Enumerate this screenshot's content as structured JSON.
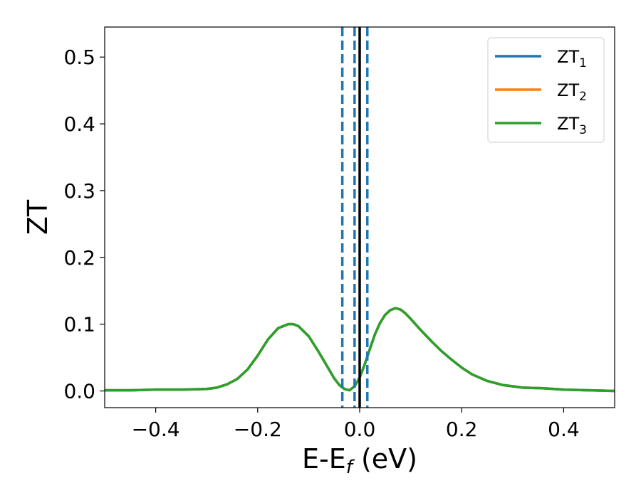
{
  "chart_data": {
    "type": "line",
    "xlabel": "E-E",
    "xlabel_sub": "f",
    "xlabel_unit": "(eV)",
    "ylabel": "ZT",
    "xlim": [
      -0.5,
      0.5
    ],
    "ylim": [
      -0.025,
      0.545
    ],
    "xticks": [
      -0.4,
      -0.2,
      0.0,
      0.2,
      0.4
    ],
    "xtick_labels": [
      "−0.4",
      "−0.2",
      "0.0",
      "0.2",
      "0.4"
    ],
    "yticks": [
      0.0,
      0.1,
      0.2,
      0.3,
      0.4,
      0.5
    ],
    "ytick_labels": [
      "0.0",
      "0.1",
      "0.2",
      "0.3",
      "0.4",
      "0.5"
    ],
    "grid": false,
    "legend_position": "top-right",
    "series": [
      {
        "name": "ZT",
        "name_sub": "1",
        "color": "#1f77b4",
        "x": [
          -0.5,
          -0.45,
          -0.4,
          -0.35,
          -0.3,
          -0.28,
          -0.26,
          -0.24,
          -0.22,
          -0.2,
          -0.18,
          -0.16,
          -0.14,
          -0.13,
          -0.12,
          -0.1,
          -0.08,
          -0.06,
          -0.05,
          -0.04,
          -0.03,
          -0.02,
          -0.01,
          0.0,
          0.01,
          0.02,
          0.03,
          0.04,
          0.05,
          0.06,
          0.07,
          0.08,
          0.09,
          0.1,
          0.12,
          0.14,
          0.16,
          0.18,
          0.2,
          0.22,
          0.25,
          0.28,
          0.32,
          0.36,
          0.4,
          0.45,
          0.5
        ],
        "y": [
          0.001,
          0.001,
          0.002,
          0.002,
          0.003,
          0.005,
          0.01,
          0.018,
          0.032,
          0.053,
          0.077,
          0.094,
          0.1,
          0.1,
          0.097,
          0.082,
          0.058,
          0.032,
          0.019,
          0.009,
          0.003,
          0.001,
          0.007,
          0.02,
          0.04,
          0.063,
          0.085,
          0.102,
          0.114,
          0.121,
          0.124,
          0.122,
          0.116,
          0.108,
          0.091,
          0.075,
          0.06,
          0.047,
          0.035,
          0.025,
          0.015,
          0.009,
          0.005,
          0.004,
          0.002,
          0.001,
          0.0
        ]
      },
      {
        "name": "ZT",
        "name_sub": "2",
        "color": "#ff7f0e",
        "x": [
          -0.5,
          -0.45,
          -0.4,
          -0.35,
          -0.3,
          -0.28,
          -0.26,
          -0.24,
          -0.22,
          -0.2,
          -0.18,
          -0.16,
          -0.14,
          -0.13,
          -0.12,
          -0.1,
          -0.08,
          -0.06,
          -0.05,
          -0.04,
          -0.03,
          -0.02,
          -0.01,
          0.0,
          0.01,
          0.02,
          0.03,
          0.04,
          0.05,
          0.06,
          0.07,
          0.08,
          0.09,
          0.1,
          0.12,
          0.14,
          0.16,
          0.18,
          0.2,
          0.22,
          0.25,
          0.28,
          0.32,
          0.36,
          0.4,
          0.45,
          0.5
        ],
        "y": [
          0.001,
          0.001,
          0.002,
          0.002,
          0.003,
          0.005,
          0.01,
          0.018,
          0.032,
          0.053,
          0.077,
          0.094,
          0.1,
          0.1,
          0.097,
          0.082,
          0.058,
          0.032,
          0.019,
          0.009,
          0.003,
          0.001,
          0.007,
          0.02,
          0.04,
          0.063,
          0.085,
          0.102,
          0.114,
          0.121,
          0.124,
          0.122,
          0.116,
          0.108,
          0.091,
          0.075,
          0.06,
          0.047,
          0.035,
          0.025,
          0.015,
          0.009,
          0.005,
          0.004,
          0.002,
          0.001,
          0.0
        ]
      },
      {
        "name": "ZT",
        "name_sub": "3",
        "color": "#2ca02c",
        "x": [
          -0.5,
          -0.45,
          -0.4,
          -0.35,
          -0.3,
          -0.28,
          -0.26,
          -0.24,
          -0.22,
          -0.2,
          -0.18,
          -0.16,
          -0.14,
          -0.13,
          -0.12,
          -0.1,
          -0.08,
          -0.06,
          -0.05,
          -0.04,
          -0.03,
          -0.02,
          -0.01,
          0.0,
          0.01,
          0.02,
          0.03,
          0.04,
          0.05,
          0.06,
          0.07,
          0.08,
          0.09,
          0.1,
          0.12,
          0.14,
          0.16,
          0.18,
          0.2,
          0.22,
          0.25,
          0.28,
          0.32,
          0.36,
          0.4,
          0.45,
          0.5
        ],
        "y": [
          0.001,
          0.001,
          0.002,
          0.002,
          0.003,
          0.005,
          0.01,
          0.018,
          0.032,
          0.053,
          0.077,
          0.094,
          0.1,
          0.1,
          0.097,
          0.082,
          0.058,
          0.032,
          0.019,
          0.009,
          0.003,
          0.001,
          0.007,
          0.02,
          0.04,
          0.063,
          0.085,
          0.102,
          0.114,
          0.121,
          0.124,
          0.122,
          0.116,
          0.108,
          0.091,
          0.075,
          0.06,
          0.047,
          0.035,
          0.025,
          0.015,
          0.009,
          0.005,
          0.004,
          0.002,
          0.001,
          0.0
        ]
      }
    ],
    "vertical_lines": [
      {
        "x": -0.034,
        "style": "dashed",
        "color": "#1f77b4"
      },
      {
        "x": -0.01,
        "style": "dashed",
        "color": "#1f77b4"
      },
      {
        "x": 0.0,
        "style": "solid",
        "color": "#000000"
      },
      {
        "x": 0.015,
        "style": "dashed",
        "color": "#1f77b4"
      }
    ]
  }
}
